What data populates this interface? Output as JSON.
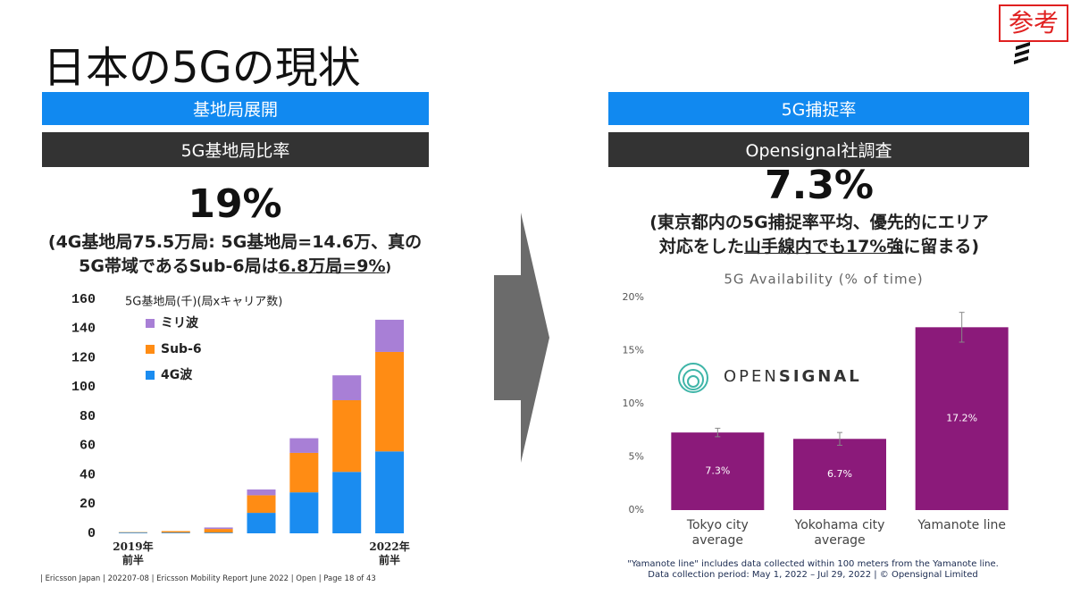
{
  "header": {
    "title": "日本の5Gの現状",
    "badge": "参考"
  },
  "left": {
    "band_1": "基地局展開",
    "band_2": "5G基地局比率",
    "headline": "19%",
    "note": [
      "(4G基地局75.5万局: 5G基地局=14.6万、真の",
      "5G帯域であるSub-6局は",
      "6.8万局=9%",
      ")"
    ]
  },
  "right": {
    "band_1": "5G捕捉率",
    "band_2": "Opensignal社調査",
    "headline": "7.3%",
    "note": [
      "(東京都内の5G捕捉率平均、優先的にエリア",
      "対応をした",
      "山手線内でも17%強",
      "に留まる)"
    ],
    "logo": [
      "OPEN",
      "SIGNAL"
    ],
    "footnotes": [
      "\"Yamanote line\" includes data collected within 100 meters from the Yamanote line.",
      "Data collection period: May 1, 2022 – Jul 29, 2022 | © Opensignal Limited"
    ]
  },
  "footer": "| Ericsson Japan | 202207-08 | Ericsson Mobility Report June 2022 | Open | Page 18 of 43",
  "chart_data": [
    {
      "type": "stacked_bar",
      "title": "5G基地局(千)(局xキャリア数)",
      "categories": [
        "2019年\n前半",
        null,
        null,
        null,
        null,
        null,
        "2022年\n前半"
      ],
      "series": [
        {
          "name": "4G波",
          "color": "#1a8cf0",
          "values": [
            0.5,
            0.5,
            0.5,
            14,
            28,
            42,
            56
          ]
        },
        {
          "name": "Sub-6",
          "color": "#ff8c14",
          "values": [
            0.3,
            1,
            2.5,
            12,
            27,
            49,
            68
          ]
        },
        {
          "name": "ミリ波",
          "color": "#a87fd6",
          "values": [
            0,
            0,
            1,
            4,
            10,
            17,
            22
          ]
        }
      ],
      "ylim": [
        0,
        160
      ],
      "yticks": [
        0,
        20,
        40,
        60,
        80,
        100,
        120,
        140,
        160
      ]
    },
    {
      "type": "bar_error",
      "title": "5G Availability (% of time)",
      "categories": [
        "Tokyo city\naverage",
        "Yokohama city\naverage",
        "Yamanote line"
      ],
      "values": [
        7.3,
        6.7,
        17.2
      ],
      "value_labels": [
        "7.3%",
        "6.7%",
        "17.2%"
      ],
      "errors": [
        0.4,
        0.6,
        1.4
      ],
      "color": "#8b1a7a",
      "ylim": [
        0,
        20
      ],
      "yticks": [
        {
          "value": 0,
          "label": "0%"
        },
        {
          "value": 5,
          "label": "5%"
        },
        {
          "value": 10,
          "label": "10%"
        },
        {
          "value": 15,
          "label": "15%"
        },
        {
          "value": 20,
          "label": "20%"
        }
      ]
    }
  ]
}
